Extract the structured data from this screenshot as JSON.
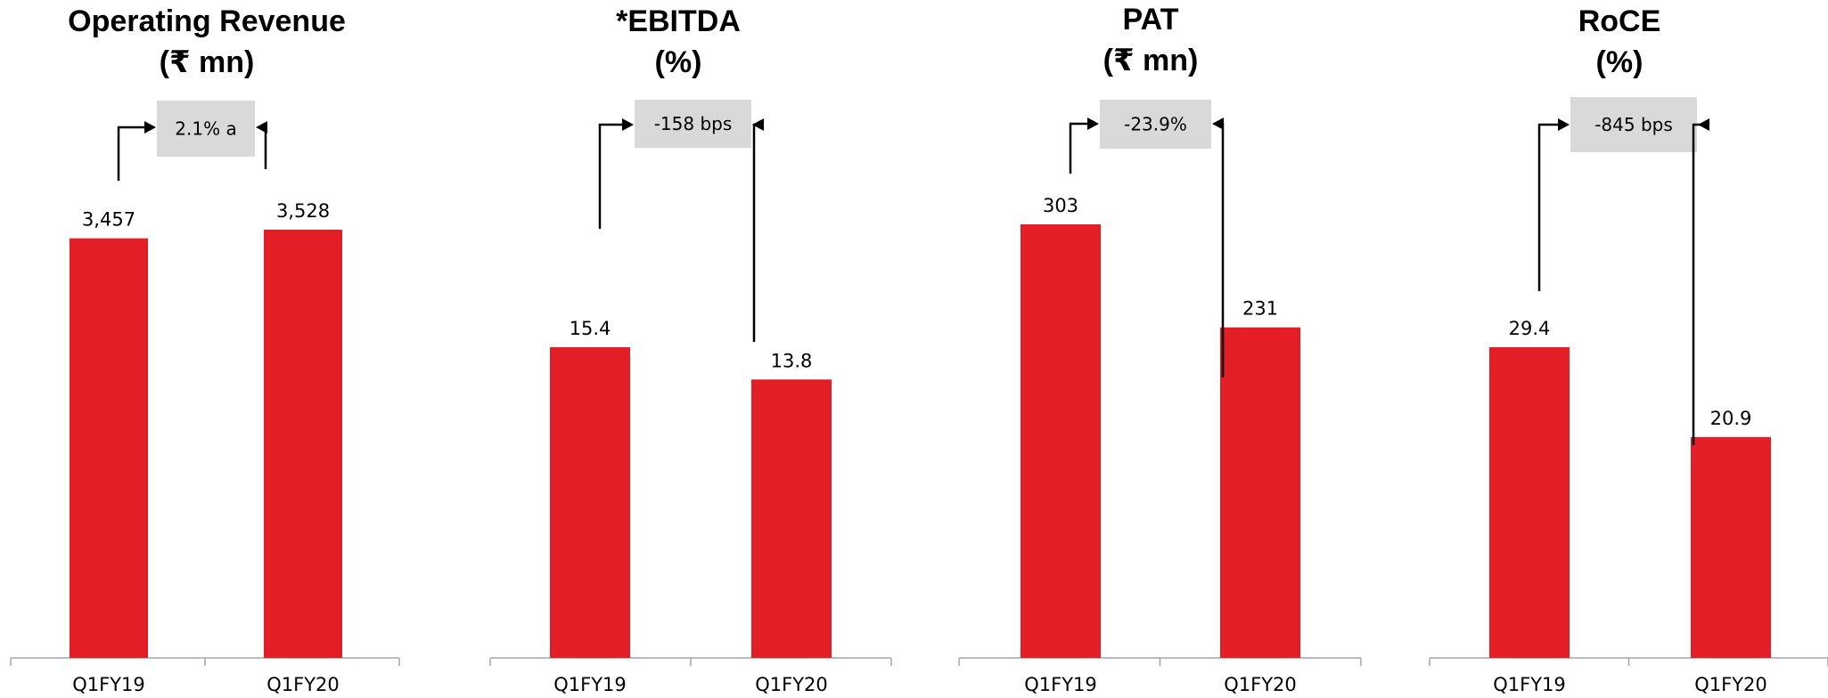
{
  "colors": {
    "bar": "#e31e26",
    "change_box": "#d9d9d9",
    "axis": "#a6a6a6"
  },
  "chart_data": [
    {
      "type": "bar",
      "title": "Operating Revenue",
      "subtitle": "(₹ mn)",
      "categories": [
        "Q1FY19",
        "Q1FY20"
      ],
      "values": [
        3457,
        3528
      ],
      "value_labels": [
        "3,457",
        "3,528"
      ],
      "change_label": "2.1% a"
    },
    {
      "type": "bar",
      "title": "*EBITDA",
      "subtitle": "(%)",
      "categories": [
        "Q1FY19",
        "Q1FY20"
      ],
      "values": [
        15.4,
        13.8
      ],
      "value_labels": [
        "15.4",
        "13.8"
      ],
      "change_label": "-158 bps"
    },
    {
      "type": "bar",
      "title": "PAT",
      "subtitle": "(₹ mn)",
      "categories": [
        "Q1FY19",
        "Q1FY20"
      ],
      "values": [
        303,
        231
      ],
      "value_labels": [
        "303",
        "231"
      ],
      "change_label": "-23.9%"
    },
    {
      "type": "bar",
      "title": "RoCE",
      "subtitle": "(%)",
      "categories": [
        "Q1FY19",
        "Q1FY20"
      ],
      "values": [
        29.4,
        20.9
      ],
      "value_labels": [
        "29.4",
        "20.9"
      ],
      "change_label": "-845 bps"
    }
  ]
}
